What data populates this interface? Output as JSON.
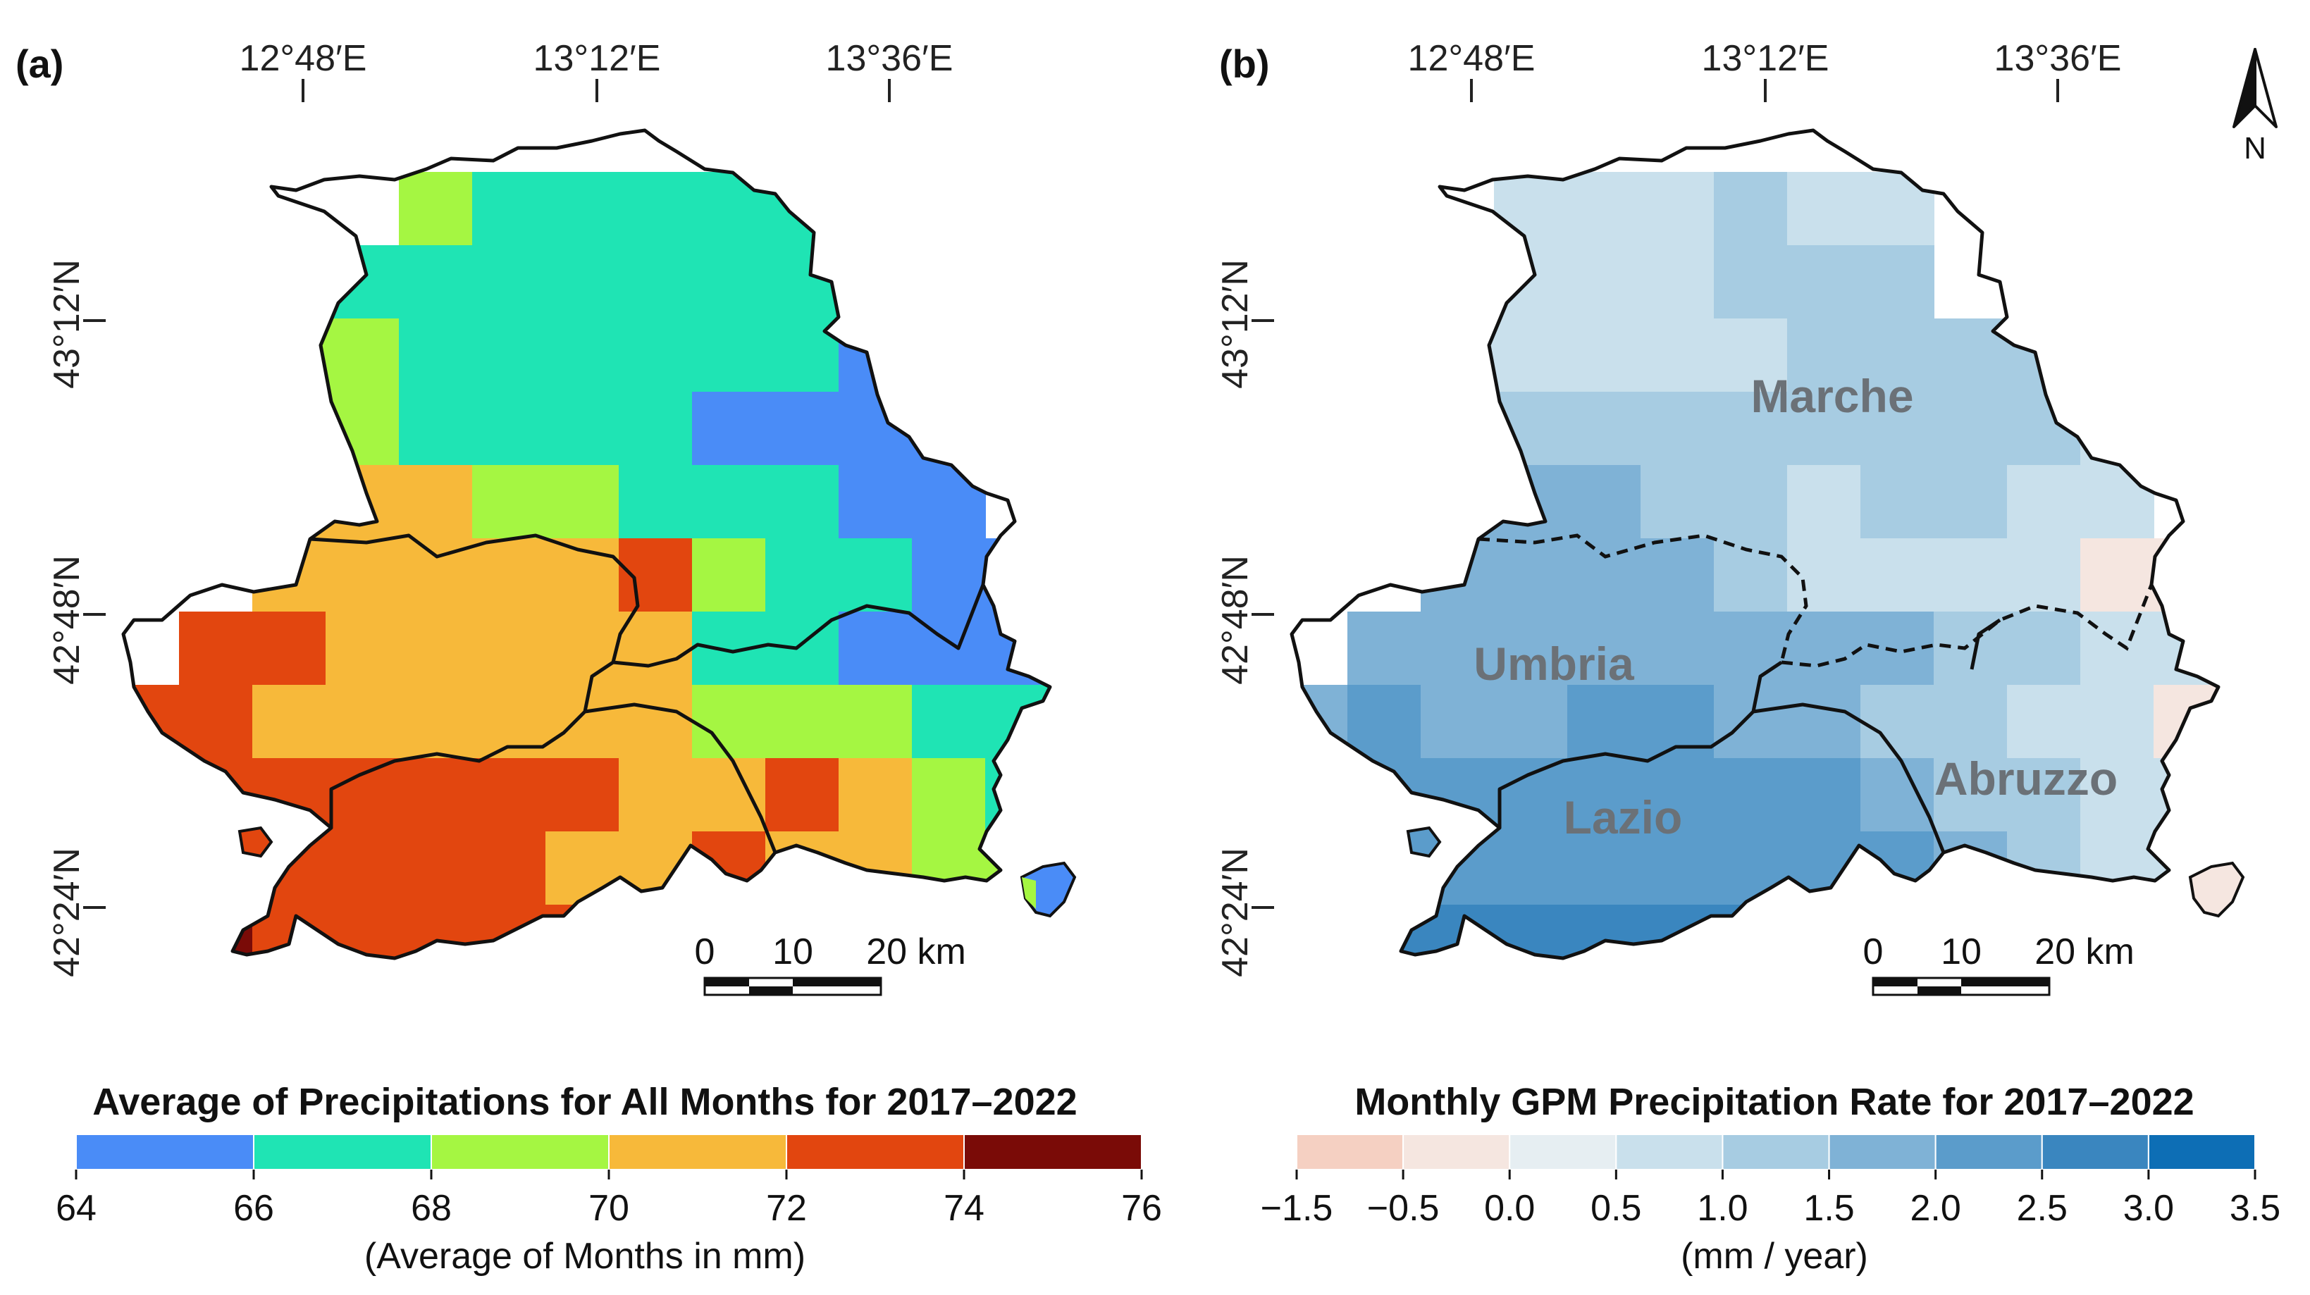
{
  "panel_a": {
    "label": "(a)",
    "lon_ticks": [
      "12°48′E",
      "13°12′E",
      "13°36′E"
    ],
    "lat_ticks": [
      "43°12′N",
      "42°48′N",
      "42°24′N"
    ],
    "scalebar": {
      "labels": [
        "0",
        "10",
        "20 km"
      ]
    },
    "legend": {
      "title": "Average of Precipitations for All Months for 2017–2022",
      "subtitle": "(Average of Months in mm)",
      "ticks": [
        "64",
        "66",
        "68",
        "70",
        "72",
        "74",
        "76"
      ],
      "colors": [
        "#4a8cf7",
        "#1fe4b4",
        "#a5f642",
        "#f7b93a",
        "#e2460f",
        "#7a0b07"
      ]
    }
  },
  "panel_b": {
    "label": "(b)",
    "lon_ticks": [
      "12°48′E",
      "13°12′E",
      "13°36′E"
    ],
    "lat_ticks": [
      "43°12′N",
      "42°48′N",
      "42°24′N"
    ],
    "scalebar": {
      "labels": [
        "0",
        "10",
        "20 km"
      ]
    },
    "north_arrow": {
      "letter": "N",
      "icon": "north-arrow-icon"
    },
    "regions": [
      "Marche",
      "Umbria",
      "Lazio",
      "Abruzzo"
    ],
    "legend": {
      "title": "Monthly GPM Precipitation Rate for 2017–2022",
      "subtitle": "(mm / year)",
      "ticks": [
        "−1.5",
        "−0.5",
        "0.0",
        "0.5",
        "1.0",
        "1.5",
        "2.0",
        "2.5",
        "3.0",
        "3.5"
      ],
      "colors": [
        "#f5d0c2",
        "#f5e6e0",
        "#e6eef2",
        "#c9e0ec",
        "#a7cce2",
        "#7fb2d6",
        "#5b9ccb",
        "#3a86bf",
        "#0d6eb5"
      ]
    }
  },
  "map_data": {
    "panel_a_grid": [
      [
        null,
        null,
        null,
        null,
        null,
        null,
        null,
        null,
        null,
        null,
        null,
        null,
        null
      ],
      [
        null,
        null,
        null,
        null,
        68,
        66,
        66,
        66,
        66,
        66,
        null,
        null,
        null
      ],
      [
        null,
        68,
        68,
        66,
        66,
        66,
        66,
        66,
        66,
        66,
        null,
        null,
        null
      ],
      [
        null,
        null,
        68,
        68,
        66,
        66,
        66,
        66,
        66,
        66,
        64,
        null,
        null
      ],
      [
        null,
        null,
        70,
        68,
        66,
        66,
        66,
        66,
        64,
        64,
        64,
        64,
        null
      ],
      [
        null,
        null,
        70,
        70,
        70,
        68,
        68,
        66,
        66,
        66,
        64,
        64,
        null
      ],
      [
        null,
        null,
        70,
        70,
        70,
        70,
        70,
        72,
        68,
        66,
        66,
        64,
        64
      ],
      [
        null,
        72,
        72,
        70,
        70,
        70,
        70,
        70,
        66,
        66,
        64,
        64,
        64
      ],
      [
        72,
        72,
        70,
        70,
        70,
        70,
        70,
        70,
        68,
        68,
        68,
        66,
        66
      ],
      [
        72,
        72,
        72,
        72,
        72,
        72,
        72,
        70,
        70,
        72,
        70,
        68,
        66
      ],
      [
        74,
        72,
        72,
        72,
        72,
        72,
        70,
        70,
        72,
        70,
        70,
        68,
        68
      ],
      [
        null,
        74,
        72,
        72,
        72,
        72,
        72,
        70,
        72,
        72,
        70,
        68,
        68
      ],
      [
        null,
        null,
        72,
        72,
        74,
        72,
        72,
        70,
        70,
        72,
        74,
        74,
        68
      ],
      [
        null,
        null,
        74,
        72,
        72,
        72,
        72,
        null,
        null,
        null,
        null,
        null,
        null
      ]
    ],
    "panel_b_grid": [
      [
        null,
        null,
        null,
        null,
        null,
        null,
        null,
        null,
        null,
        null,
        null,
        null,
        null
      ],
      [
        null,
        null,
        null,
        0.5,
        0.5,
        0.5,
        1.0,
        0.5,
        0.5,
        null,
        null,
        null,
        null
      ],
      [
        null,
        0.5,
        0.5,
        0.5,
        0.5,
        0.5,
        1.0,
        1.0,
        1.0,
        null,
        null,
        null,
        null
      ],
      [
        null,
        0.5,
        0.5,
        0.5,
        0.5,
        0.5,
        0.5,
        1.0,
        1.0,
        1.0,
        1.0,
        null,
        null
      ],
      [
        null,
        1.0,
        1.0,
        1.0,
        1.0,
        1.0,
        1.0,
        1.0,
        1.0,
        1.0,
        1.0,
        0.5,
        null
      ],
      [
        null,
        null,
        1.5,
        1.5,
        1.5,
        1.0,
        1.0,
        0.5,
        1.0,
        1.0,
        0.5,
        0.5,
        null
      ],
      [
        null,
        null,
        1.5,
        1.5,
        1.5,
        1.5,
        1.0,
        0.5,
        0.5,
        0.5,
        0.5,
        -0.5,
        -0.5
      ],
      [
        null,
        1.5,
        1.5,
        1.5,
        1.5,
        1.5,
        1.5,
        1.5,
        1.5,
        1.0,
        1.0,
        0.5,
        0.5
      ],
      [
        1.5,
        2.0,
        1.5,
        1.5,
        2.0,
        2.0,
        1.5,
        1.5,
        1.0,
        1.0,
        0.5,
        0.5,
        -0.5
      ],
      [
        2.0,
        2.0,
        2.0,
        2.0,
        2.0,
        2.0,
        2.0,
        2.0,
        1.5,
        1.0,
        1.0,
        0.5,
        0.5
      ],
      [
        2.5,
        2.0,
        2.0,
        2.0,
        2.0,
        2.0,
        2.0,
        2.0,
        2.0,
        1.5,
        1.0,
        0.5,
        0.5
      ],
      [
        null,
        2.5,
        2.5,
        2.5,
        2.5,
        2.5,
        2.5,
        2.5,
        2.0,
        1.5,
        1.5,
        0.5,
        null
      ],
      [
        null,
        null,
        2.5,
        3.0,
        2.5,
        2.5,
        2.5,
        2.5,
        2.0,
        2.0,
        1.0,
        0.5,
        null
      ],
      [
        null,
        null,
        2.5,
        2.5,
        2.5,
        2.5,
        null,
        null,
        null,
        null,
        null,
        null,
        null
      ]
    ]
  }
}
